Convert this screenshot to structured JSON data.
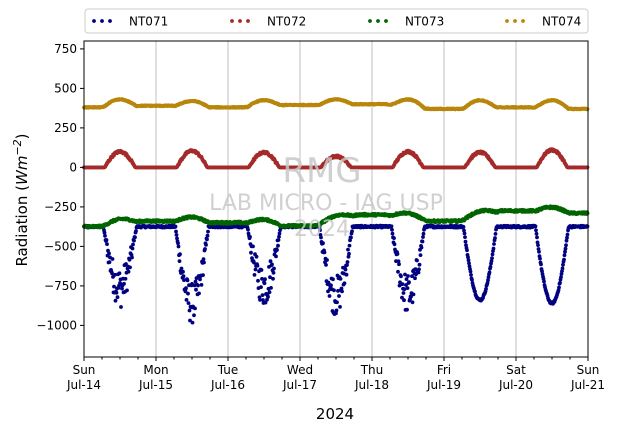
{
  "chart_data": {
    "type": "scatter",
    "xlabel": "2024",
    "ylabel_prefix": "Radiation (",
    "ylabel_unit": "Wm",
    "ylabel_exp": "−2",
    "ylabel_suffix": ")",
    "ylim": [
      -1200,
      800
    ],
    "yticks": [
      -1000,
      -750,
      -500,
      -250,
      0,
      250,
      500,
      750
    ],
    "ytick_labels": [
      "−1000",
      "−750",
      "−500",
      "−250",
      "0",
      "250",
      "500",
      "750"
    ],
    "xlim": [
      "2024-07-14",
      "2024-07-21"
    ],
    "xticks": [
      {
        "day": "Sun",
        "date": "Jul-14"
      },
      {
        "day": "Mon",
        "date": "Jul-15"
      },
      {
        "day": "Tue",
        "date": "Jul-16"
      },
      {
        "day": "Wed",
        "date": "Jul-17"
      },
      {
        "day": "Thu",
        "date": "Jul-18"
      },
      {
        "day": "Fri",
        "date": "Jul-19"
      },
      {
        "day": "Sat",
        "date": "Jul-20"
      },
      {
        "day": "Sun",
        "date": "Jul-21"
      }
    ],
    "grid": "vertical",
    "legend_position": "top",
    "series": [
      {
        "name": "NT071",
        "color": "#000080",
        "baseline": -375,
        "daily_min": [
          -800,
          -900,
          -790,
          -850,
          -840,
          -840,
          -860
        ],
        "noisy": [
          true,
          true,
          true,
          true,
          true,
          false,
          false
        ]
      },
      {
        "name": "NT072",
        "color": "#a52a2a",
        "baseline": 0,
        "daily_peak": [
          100,
          105,
          95,
          70,
          100,
          95,
          110
        ]
      },
      {
        "name": "NT073",
        "color": "#006400",
        "night_levels": [
          -375,
          -340,
          -350,
          -370,
          -300,
          -340,
          -275,
          -290
        ],
        "day_bump": 30
      },
      {
        "name": "NT074",
        "color": "#b8860b",
        "night_levels": [
          380,
          390,
          380,
          395,
          400,
          370,
          380,
          370
        ],
        "day_peak": [
          430,
          420,
          425,
          430,
          430,
          425,
          425
        ]
      }
    ]
  },
  "watermark": {
    "line1": "RMG",
    "line2": "LAB MICRO - IAG USP",
    "line3": "2024"
  }
}
